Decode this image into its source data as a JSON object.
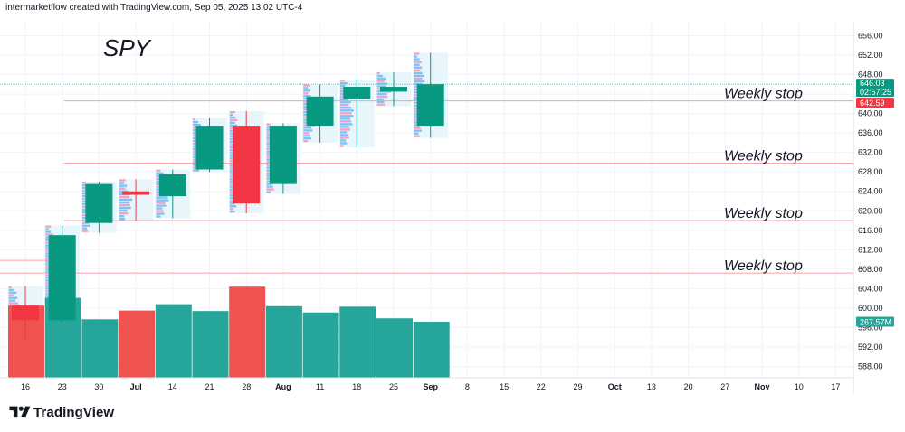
{
  "header": {
    "attribution": "intermarketflow created with TradingView.com, Sep 05, 2025 13:02 UTC-4"
  },
  "branding": {
    "logo_text": "TradingView"
  },
  "colors": {
    "bull": "#089981",
    "bear": "#f23645",
    "bull_volume": "#26a69a",
    "bear_volume": "#ef5350",
    "stop_line": "#f7a1a8",
    "price_line": "#3fb8a0",
    "profile_zone": "#e8f6fb"
  },
  "chart_data": {
    "type": "candlestick",
    "symbol": "SPY",
    "timeframe": "weekly",
    "ylim": [
      586,
      658
    ],
    "y_ticks": [
      "588.00",
      "592.00",
      "596.00",
      "600.00",
      "604.00",
      "608.00",
      "612.00",
      "616.00",
      "620.00",
      "624.00",
      "628.00",
      "632.00",
      "636.00",
      "640.00",
      "644.00",
      "648.00",
      "652.00",
      "656.00"
    ],
    "x_ticks": [
      {
        "label": "16",
        "bold": false
      },
      {
        "label": "23",
        "bold": false
      },
      {
        "label": "30",
        "bold": false
      },
      {
        "label": "Jul",
        "bold": true
      },
      {
        "label": "14",
        "bold": false
      },
      {
        "label": "21",
        "bold": false
      },
      {
        "label": "28",
        "bold": false
      },
      {
        "label": "Aug",
        "bold": true
      },
      {
        "label": "11",
        "bold": false
      },
      {
        "label": "18",
        "bold": false
      },
      {
        "label": "25",
        "bold": false
      },
      {
        "label": "Sep",
        "bold": true
      },
      {
        "label": "8",
        "bold": false
      },
      {
        "label": "15",
        "bold": false
      },
      {
        "label": "22",
        "bold": false
      },
      {
        "label": "29",
        "bold": false
      },
      {
        "label": "Oct",
        "bold": true
      },
      {
        "label": "13",
        "bold": false
      },
      {
        "label": "20",
        "bold": false
      },
      {
        "label": "27",
        "bold": false
      },
      {
        "label": "Nov",
        "bold": true
      },
      {
        "label": "10",
        "bold": false
      },
      {
        "label": "17",
        "bold": false
      }
    ],
    "candles": [
      {
        "week": "Jun 16",
        "open": 600.5,
        "high": 604.5,
        "low": 593.5,
        "close": 597.5
      },
      {
        "week": "Jun 23",
        "open": 597.5,
        "high": 617.0,
        "low": 597.0,
        "close": 615.0
      },
      {
        "week": "Jun 30",
        "open": 617.5,
        "high": 626.0,
        "low": 615.5,
        "close": 625.5
      },
      {
        "week": "Jul 7",
        "open": 624.0,
        "high": 626.5,
        "low": 618.0,
        "close": 623.3
      },
      {
        "week": "Jul 14",
        "open": 623.0,
        "high": 628.5,
        "low": 618.5,
        "close": 627.5
      },
      {
        "week": "Jul 21",
        "open": 628.5,
        "high": 639.0,
        "low": 628.0,
        "close": 637.5
      },
      {
        "week": "Jul 28",
        "open": 637.5,
        "high": 640.5,
        "low": 619.5,
        "close": 621.5
      },
      {
        "week": "Aug 4",
        "open": 625.5,
        "high": 638.0,
        "low": 623.5,
        "close": 637.5
      },
      {
        "week": "Aug 11",
        "open": 637.5,
        "high": 646.0,
        "low": 634.0,
        "close": 643.5
      },
      {
        "week": "Aug 18",
        "open": 643.0,
        "high": 647.0,
        "low": 633.0,
        "close": 645.5
      },
      {
        "week": "Aug 25",
        "open": 644.5,
        "high": 648.5,
        "low": 641.5,
        "close": 645.5
      },
      {
        "week": "Sep 1",
        "open": 637.5,
        "high": 652.5,
        "low": 635.0,
        "close": 646.03
      }
    ],
    "volume": {
      "values": [
        600.5,
        602.1,
        597.7,
        599.5,
        600.8,
        599.4,
        604.4,
        600.4,
        599.1,
        600.3,
        597.9,
        597.2
      ],
      "unit": "volume bar tops expressed in price-axis units (overlay)"
    },
    "last_price": "646.03",
    "countdown": "02:57:25",
    "stop_price_badge": "642.59",
    "volume_badge": "267.57M",
    "weekly_stops": [
      642.59,
      629.8,
      618.0,
      607.2
    ],
    "annotations": [
      {
        "text": "Weekly stop",
        "price": 642.59
      },
      {
        "text": "Weekly stop",
        "price": 629.8
      },
      {
        "text": "Weekly stop",
        "price": 618.0
      },
      {
        "text": "Weekly stop",
        "price": 607.2
      }
    ],
    "title": "SPY"
  }
}
